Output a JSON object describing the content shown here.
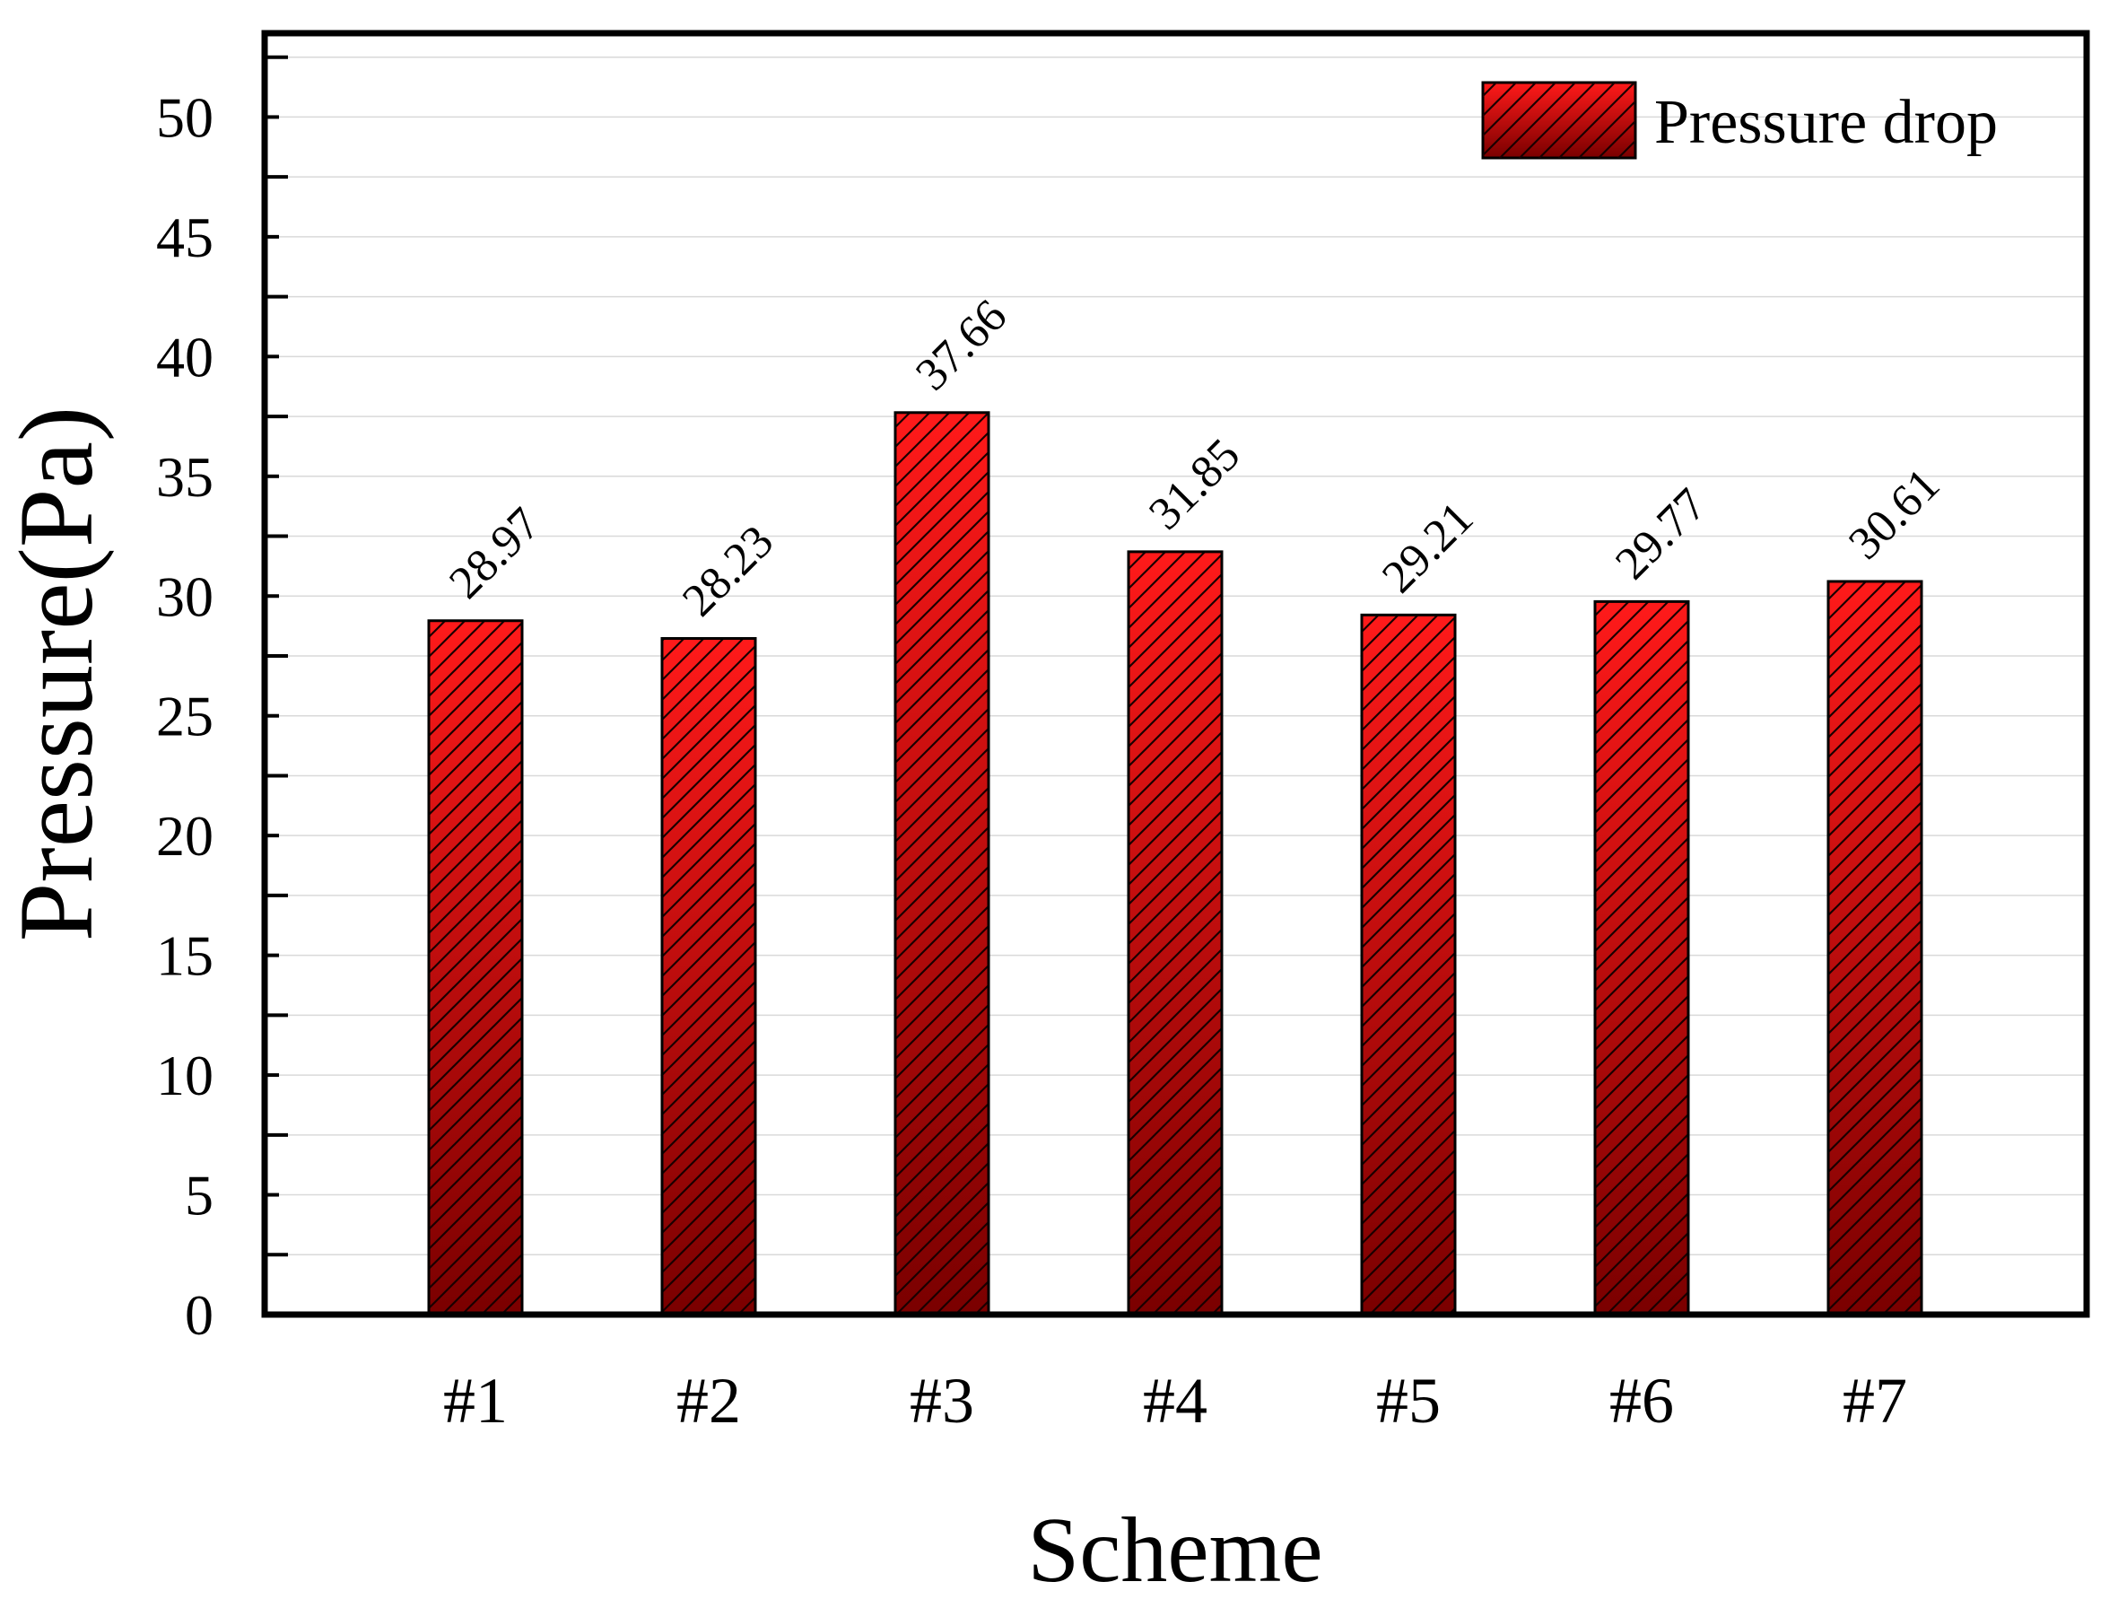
{
  "chart_data": {
    "type": "bar",
    "xlabel": "Scheme",
    "ylabel": "Pressure(Pa)",
    "categories": [
      "#1",
      "#2",
      "#3",
      "#4",
      "#5",
      "#6",
      "#7"
    ],
    "series": [
      {
        "name": "Pressure drop",
        "values": [
          28.97,
          28.23,
          37.66,
          31.85,
          29.21,
          29.77,
          30.61
        ],
        "data_labels": [
          "28.97",
          "28.23",
          "37.66",
          "31.85",
          "29.21",
          "29.77",
          "30.61"
        ]
      }
    ],
    "ylim": [
      0,
      53.5
    ],
    "yticks": [
      0,
      5,
      10,
      15,
      20,
      25,
      30,
      35,
      40,
      45,
      50
    ],
    "ytick_labels": [
      "0",
      "5",
      "10",
      "15",
      "20",
      "25",
      "30",
      "35",
      "40",
      "45",
      "50"
    ],
    "minor_tick_step": 2.5,
    "grid": true,
    "legend_position": "top-right",
    "bar_pattern": "diagonal-hatch",
    "colors": {
      "bar_top": "#ff1a1a",
      "bar_bottom": "#7a0000",
      "hatch": "#1a0000",
      "grid": "#d9d9d9",
      "frame": "#000000"
    }
  }
}
